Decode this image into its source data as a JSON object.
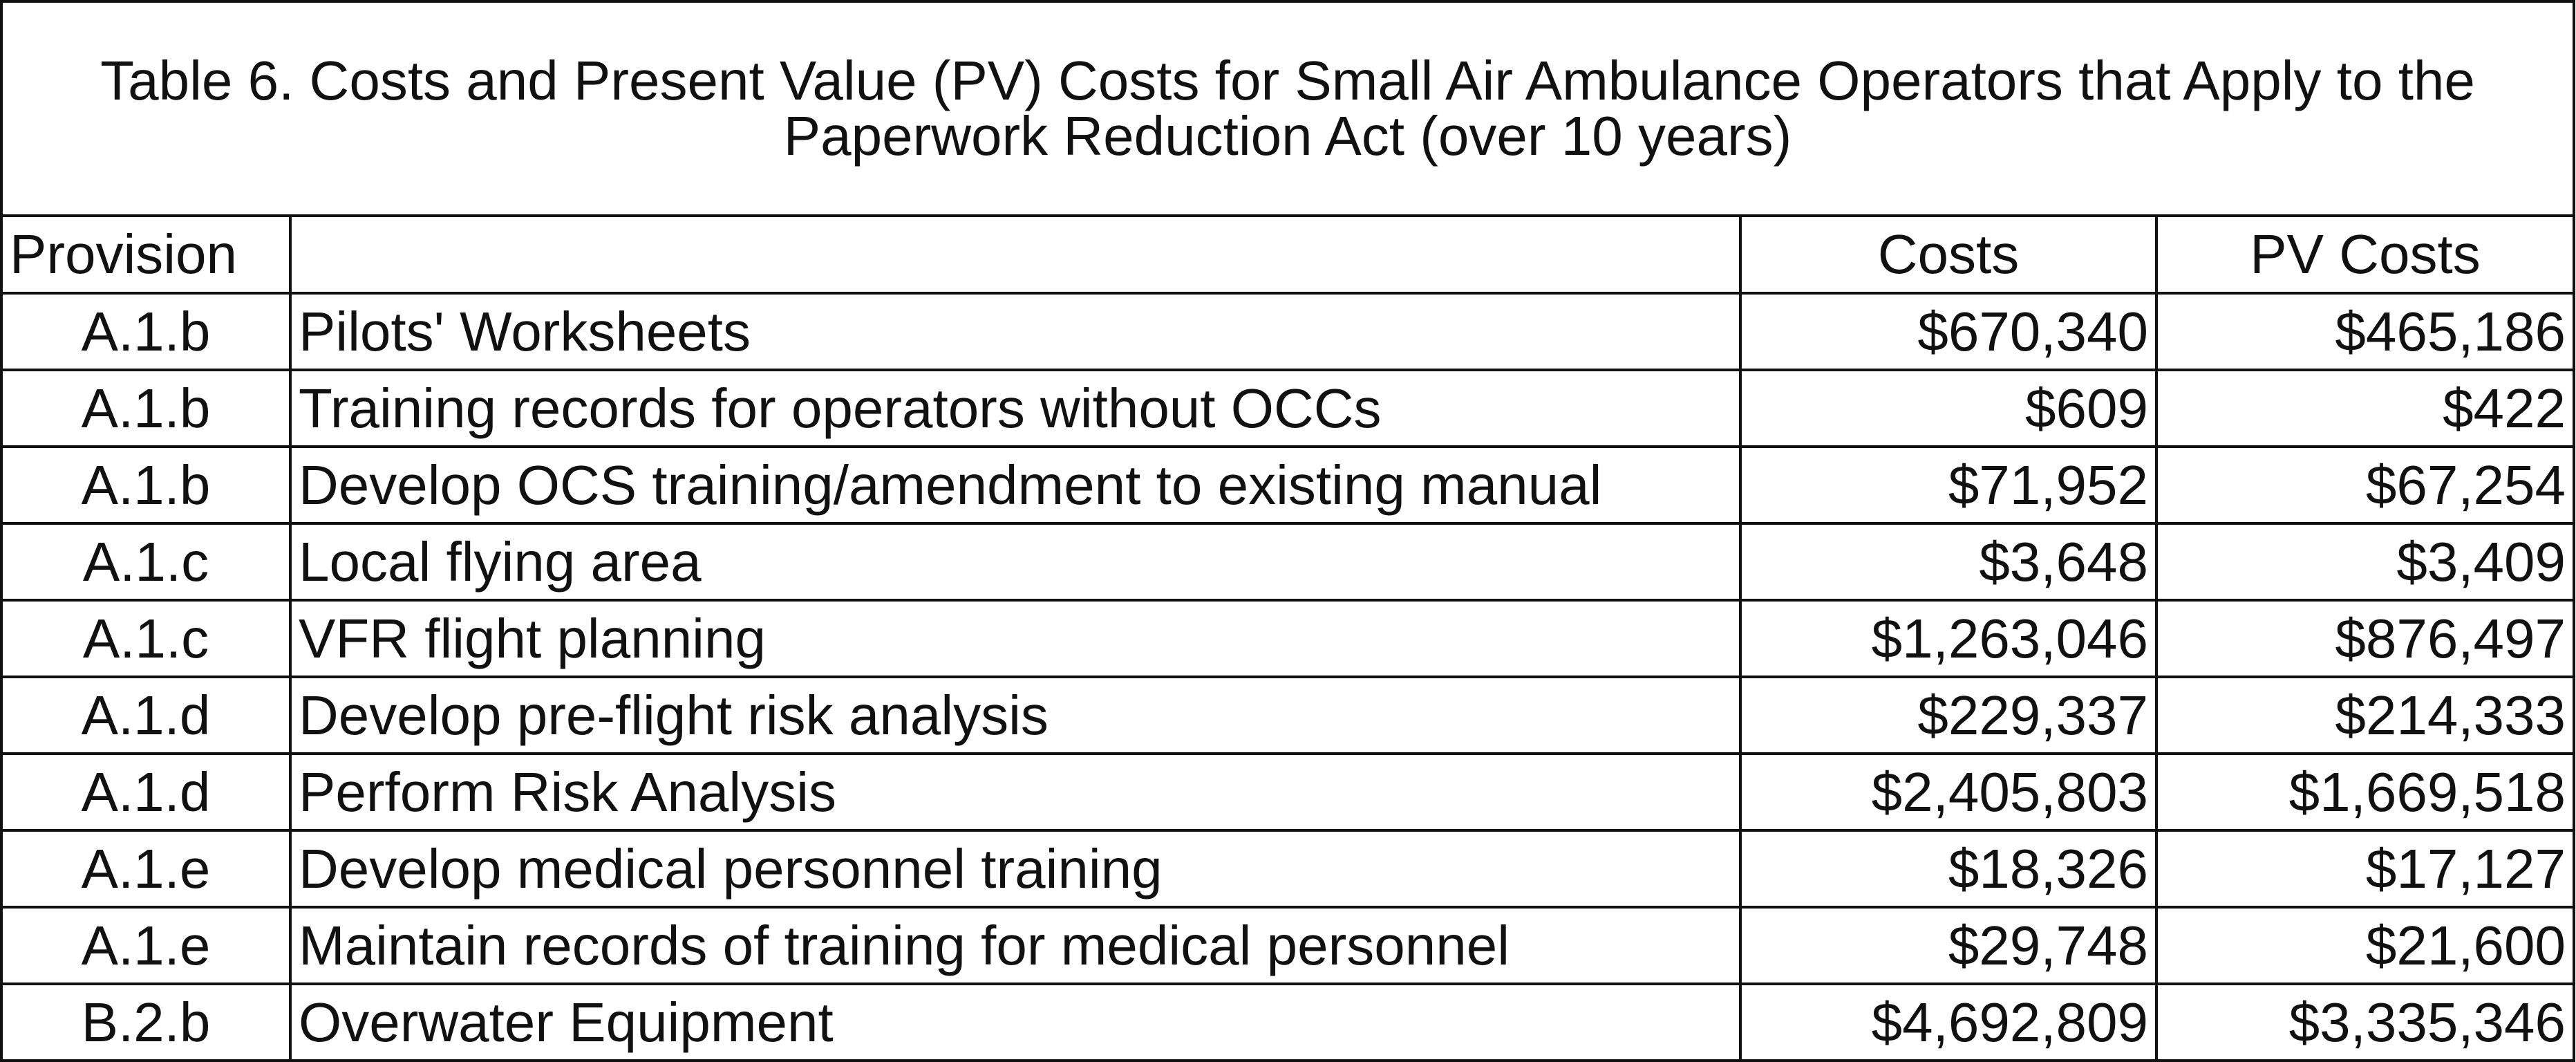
{
  "table": {
    "title_line1": "Table 6.  Costs and Present Value (PV) Costs for Small Air Ambulance Operators that Apply to the",
    "title_line2": "Paperwork Reduction Act (over 10 years)",
    "headers": {
      "provision": "Provision",
      "description": "",
      "costs": "Costs",
      "pv_costs": "PV Costs"
    },
    "rows": [
      {
        "provision": "A.1.b",
        "description": "Pilots' Worksheets",
        "costs": "$670,340",
        "pv_costs": "$465,186"
      },
      {
        "provision": "A.1.b",
        "description": "Training records for operators without OCCs",
        "costs": "$609",
        "pv_costs": "$422"
      },
      {
        "provision": "A.1.b",
        "description": "Develop OCS training/amendment to existing manual",
        "costs": "$71,952",
        "pv_costs": "$67,254"
      },
      {
        "provision": "A.1.c",
        "description": "Local flying area",
        "costs": "$3,648",
        "pv_costs": "$3,409"
      },
      {
        "provision": "A.1.c",
        "description": "VFR flight planning",
        "costs": "$1,263,046",
        "pv_costs": "$876,497"
      },
      {
        "provision": "A.1.d",
        "description": "Develop pre-flight risk analysis",
        "costs": "$229,337",
        "pv_costs": "$214,333"
      },
      {
        "provision": "A.1.d",
        "description": "Perform Risk Analysis",
        "costs": "$2,405,803",
        "pv_costs": "$1,669,518"
      },
      {
        "provision": "A.1.e",
        "description": "Develop medical personnel training",
        "costs": "$18,326",
        "pv_costs": "$17,127"
      },
      {
        "provision": "A.1.e",
        "description": "Maintain records of training  for medical personnel",
        "costs": "$29,748",
        "pv_costs": "$21,600"
      },
      {
        "provision": "B.2.b",
        "description": "Overwater Equipment",
        "costs": "$4,692,809",
        "pv_costs": "$3,335,346"
      }
    ]
  }
}
